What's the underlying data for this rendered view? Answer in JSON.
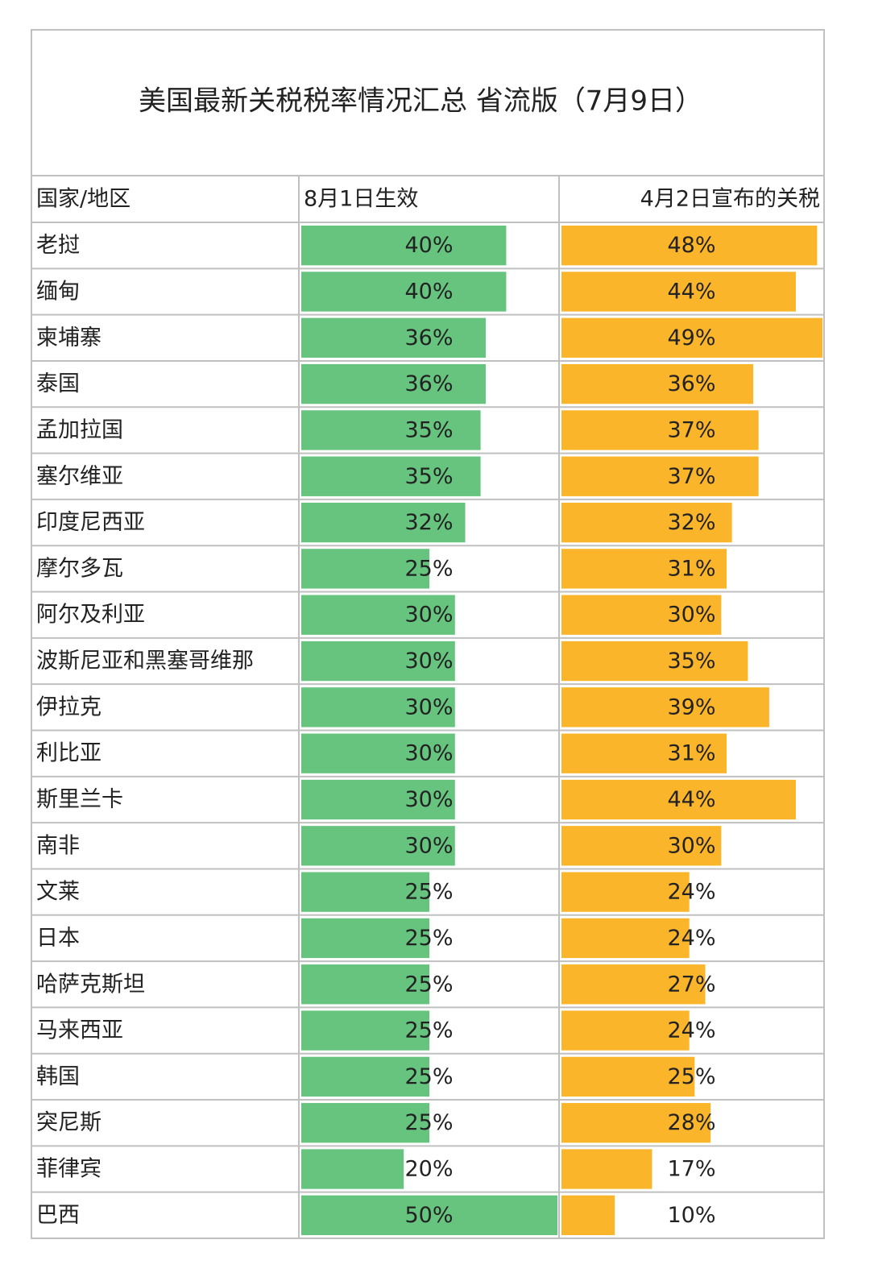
{
  "header": {
    "title": "美国最新关税税率情况汇总 省流版（7月9日）"
  },
  "table": {
    "columns": [
      "国家/地区",
      "8月1日生效",
      "4月2日宣布的关税"
    ],
    "bar_colors": [
      "#66c47f",
      "#fbb52b"
    ],
    "rows": [
      [
        "老挝",
        {
          "value": 40,
          "label": "40%"
        },
        {
          "value": 48,
          "label": "48%"
        }
      ],
      [
        "缅甸",
        {
          "value": 40,
          "label": "40%"
        },
        {
          "value": 44,
          "label": "44%"
        }
      ],
      [
        "柬埔寨",
        {
          "value": 36,
          "label": "36%"
        },
        {
          "value": 49,
          "label": "49%"
        }
      ],
      [
        "泰国",
        {
          "value": 36,
          "label": "36%"
        },
        {
          "value": 36,
          "label": "36%"
        }
      ],
      [
        "孟加拉国",
        {
          "value": 35,
          "label": "35%"
        },
        {
          "value": 37,
          "label": "37%"
        }
      ],
      [
        "塞尔维亚",
        {
          "value": 35,
          "label": "35%"
        },
        {
          "value": 37,
          "label": "37%"
        }
      ],
      [
        "印度尼西亚",
        {
          "value": 32,
          "label": "32%"
        },
        {
          "value": 32,
          "label": "32%"
        }
      ],
      [
        "摩尔多瓦",
        {
          "value": 25,
          "label": "25%"
        },
        {
          "value": 31,
          "label": "31%"
        }
      ],
      [
        "阿尔及利亚",
        {
          "value": 30,
          "label": "30%"
        },
        {
          "value": 30,
          "label": "30%"
        }
      ],
      [
        "波斯尼亚和黑塞哥维那",
        {
          "value": 30,
          "label": "30%"
        },
        {
          "value": 35,
          "label": "35%"
        }
      ],
      [
        "伊拉克",
        {
          "value": 30,
          "label": "30%"
        },
        {
          "value": 39,
          "label": "39%"
        }
      ],
      [
        "利比亚",
        {
          "value": 30,
          "label": "30%"
        },
        {
          "value": 31,
          "label": "31%"
        }
      ],
      [
        "斯里兰卡",
        {
          "value": 30,
          "label": "30%"
        },
        {
          "value": 44,
          "label": "44%"
        }
      ],
      [
        "南非",
        {
          "value": 30,
          "label": "30%"
        },
        {
          "value": 30,
          "label": "30%"
        }
      ],
      [
        "文莱",
        {
          "value": 25,
          "label": "25%"
        },
        {
          "value": 24,
          "label": "24%"
        }
      ],
      [
        "日本",
        {
          "value": 25,
          "label": "25%"
        },
        {
          "value": 24,
          "label": "24%"
        }
      ],
      [
        "哈萨克斯坦",
        {
          "value": 25,
          "label": "25%"
        },
        {
          "value": 27,
          "label": "27%"
        }
      ],
      [
        "马来西亚",
        {
          "value": 25,
          "label": "25%"
        },
        {
          "value": 24,
          "label": "24%"
        }
      ],
      [
        "韩国",
        {
          "value": 25,
          "label": "25%"
        },
        {
          "value": 25,
          "label": "25%"
        }
      ],
      [
        "突尼斯",
        {
          "value": 25,
          "label": "25%"
        },
        {
          "value": 28,
          "label": "28%"
        }
      ],
      [
        "菲律宾",
        {
          "value": 20,
          "label": "20%"
        },
        {
          "value": 17,
          "label": "17%"
        }
      ],
      [
        "巴西",
        {
          "value": 50,
          "label": "50%"
        },
        {
          "value": 10,
          "label": "10%"
        }
      ]
    ]
  }
}
